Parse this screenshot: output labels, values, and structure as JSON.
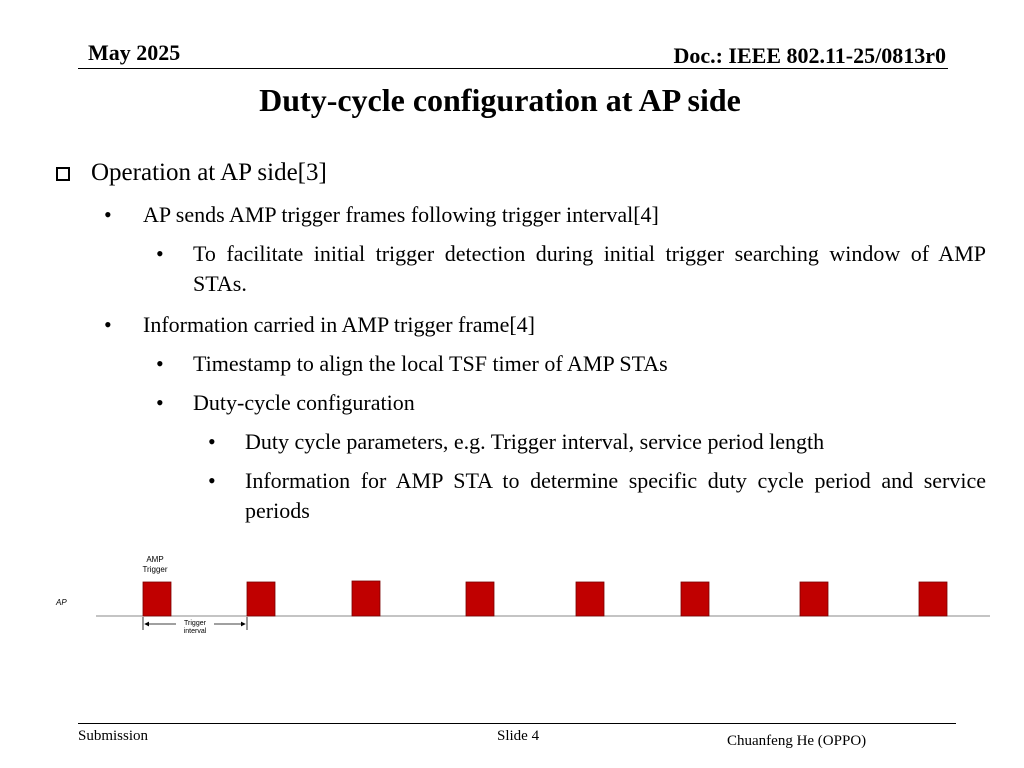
{
  "header": {
    "date": "May 2025",
    "doc": "Doc.: IEEE 802.11-25/0813r0"
  },
  "title": "Duty-cycle configuration at AP side",
  "bullets": {
    "b1": "Operation at AP side[3]",
    "b1_1": "AP sends AMP trigger frames following trigger interval[4]",
    "b1_1_1": "To facilitate initial trigger detection during initial trigger searching window of AMP STAs.",
    "b1_2": "Information carried in AMP trigger frame[4]",
    "b1_2_1": "Timestamp to align the local TSF timer of AMP STAs",
    "b1_2_2": "Duty-cycle configuration",
    "b1_2_2_1": "Duty cycle parameters, e.g. Trigger interval, service period length",
    "b1_2_2_2": "Information for AMP STA to determine specific duty cycle period and service periods",
    "bullet_glyph": "•"
  },
  "diagram": {
    "node_label": "AP",
    "trigger_label_line1": "AMP",
    "trigger_label_line2": "Trigger",
    "interval_label_line1": "Trigger",
    "interval_label_line2": "interval",
    "pulse_color": "#c00000",
    "pulse_count": 8
  },
  "footer": {
    "left": "Submission",
    "center": "Slide 4",
    "right": "Chuanfeng He (OPPO)"
  }
}
